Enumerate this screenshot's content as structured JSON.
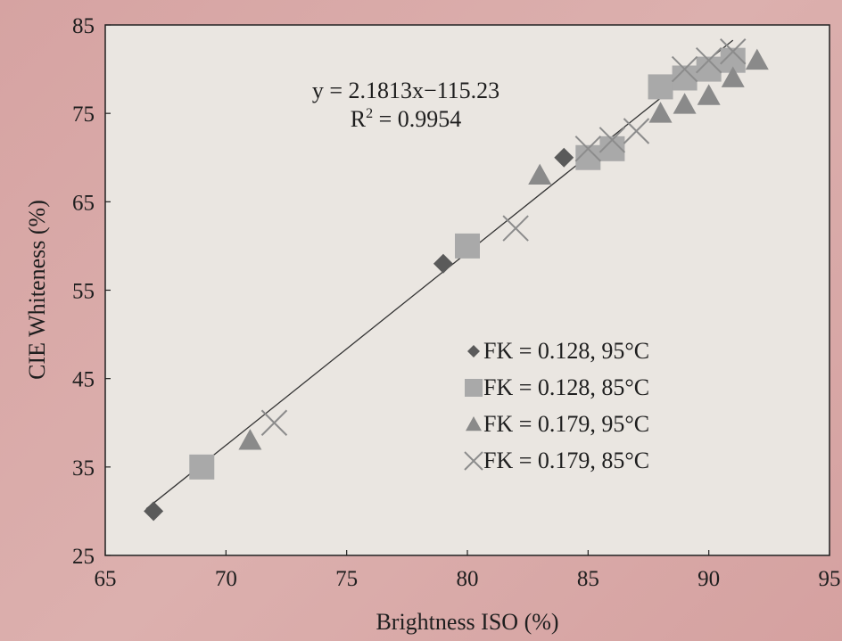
{
  "chart_data": {
    "type": "scatter",
    "xlabel": "Brightness ISO (%)",
    "ylabel": "CIE Whiteness (%)",
    "xlim": [
      65,
      95
    ],
    "ylim": [
      25,
      85
    ],
    "xticks": [
      "65",
      "70",
      "75",
      "80",
      "85",
      "90",
      "95"
    ],
    "yticks": [
      "25",
      "35",
      "45",
      "55",
      "65",
      "75",
      "85"
    ],
    "grid": false,
    "legend_position": "bottom-right",
    "trendline": {
      "equation": "y = 2.1813x−115.23",
      "r2_prefix": "R",
      "r2_sup": "2",
      "r2_suffix": " = 0.9954",
      "slope": 2.1813,
      "intercept": -115.23,
      "x_range": [
        66.7,
        91
      ]
    },
    "series": [
      {
        "name": "FK = 0.128, 95°C",
        "marker": "diamond",
        "color": "#5a5a5a",
        "points": [
          [
            67,
            30
          ],
          [
            79,
            58
          ],
          [
            84,
            70
          ]
        ]
      },
      {
        "name": "FK = 0.128, 85°C",
        "marker": "square",
        "color": "#a9a9a9",
        "points": [
          [
            69,
            35
          ],
          [
            80,
            60
          ],
          [
            85,
            70
          ],
          [
            86,
            71
          ],
          [
            88,
            78
          ],
          [
            89,
            79
          ],
          [
            90,
            80
          ],
          [
            91,
            81
          ]
        ]
      },
      {
        "name": "FK = 0.179, 95°C",
        "marker": "triangle",
        "color": "#8a8a8a",
        "points": [
          [
            71,
            38
          ],
          [
            83,
            68
          ],
          [
            88,
            75
          ],
          [
            89,
            76
          ],
          [
            90,
            77
          ],
          [
            91,
            79
          ],
          [
            92,
            81
          ]
        ]
      },
      {
        "name": "FK = 0.179, 85°C",
        "marker": "cross",
        "color": "#8c8c8c",
        "points": [
          [
            72,
            40
          ],
          [
            82,
            62
          ],
          [
            85,
            71
          ],
          [
            86,
            72
          ],
          [
            87,
            73
          ],
          [
            89,
            80
          ],
          [
            90,
            81
          ],
          [
            91,
            82
          ]
        ]
      }
    ]
  }
}
